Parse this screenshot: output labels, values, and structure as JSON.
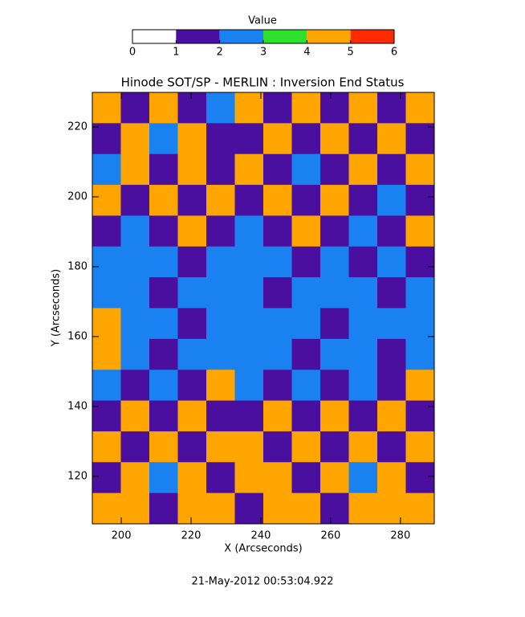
{
  "chart_data": {
    "type": "heatmap",
    "title": "Hinode SOT/SP - MERLIN : Inversion End Status",
    "xlabel": "X (Arcseconds)",
    "ylabel": "Y (Arcseconds)",
    "footer": "21-May-2012 00:53:04.922",
    "colorbar": {
      "title": "Value",
      "ticks": [
        0,
        1,
        2,
        3,
        4,
        5,
        6
      ],
      "colors": [
        "#ffffff",
        "#4b0fa0",
        "#1a82f0",
        "#2ee02e",
        "#ffa500",
        "#ff2a00"
      ]
    },
    "xlim": [
      191.7,
      289.7
    ],
    "ylim": [
      106.4,
      229.9
    ],
    "xticks": [
      200,
      220,
      240,
      260,
      280
    ],
    "yticks": [
      120,
      140,
      160,
      180,
      200,
      220
    ],
    "values": [
      [
        4,
        1,
        4,
        1,
        2,
        4,
        1,
        4,
        1,
        4,
        1,
        4
      ],
      [
        1,
        4,
        2,
        4,
        1,
        1,
        4,
        1,
        4,
        1,
        4,
        1
      ],
      [
        2,
        4,
        1,
        4,
        1,
        4,
        1,
        2,
        1,
        4,
        1,
        4
      ],
      [
        4,
        1,
        4,
        1,
        4,
        1,
        4,
        1,
        4,
        1,
        2,
        1
      ],
      [
        1,
        2,
        1,
        4,
        1,
        2,
        1,
        4,
        1,
        2,
        1,
        4
      ],
      [
        2,
        2,
        2,
        1,
        2,
        2,
        2,
        1,
        2,
        1,
        2,
        1
      ],
      [
        2,
        2,
        1,
        2,
        2,
        2,
        1,
        2,
        2,
        2,
        1,
        2
      ],
      [
        4,
        2,
        2,
        1,
        2,
        2,
        2,
        2,
        1,
        2,
        2,
        2
      ],
      [
        4,
        2,
        1,
        2,
        2,
        2,
        2,
        1,
        2,
        2,
        1,
        2
      ],
      [
        2,
        1,
        2,
        1,
        4,
        2,
        1,
        2,
        1,
        2,
        1,
        4
      ],
      [
        1,
        4,
        1,
        4,
        1,
        1,
        4,
        1,
        4,
        1,
        4,
        1
      ],
      [
        4,
        1,
        4,
        1,
        4,
        4,
        1,
        4,
        1,
        4,
        1,
        4
      ],
      [
        1,
        4,
        2,
        4,
        1,
        4,
        4,
        1,
        4,
        2,
        4,
        1
      ],
      [
        4,
        4,
        1,
        4,
        4,
        1,
        4,
        4,
        1,
        4,
        4,
        4
      ]
    ]
  }
}
